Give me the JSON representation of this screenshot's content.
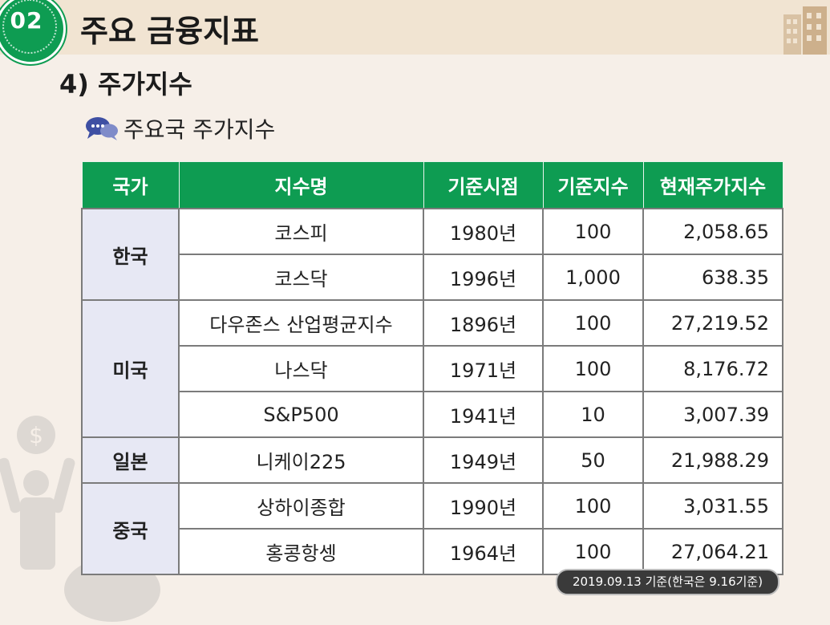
{
  "header": {
    "badge_number": "02",
    "title": "주요 금융지표"
  },
  "section": {
    "title": "4) 주가지수",
    "subtitle": "주요국 주가지수"
  },
  "colors": {
    "accent_green": "#0e9c52",
    "country_cell_bg": "#e7e8f4",
    "header_bar_bg": "#f1e4d2"
  },
  "icons": {
    "badge": "number-badge-icon",
    "buildings": "buildings-icon",
    "chat": "chat-bubbles-icon"
  },
  "table": {
    "headers": [
      "국가",
      "지수명",
      "기준시점",
      "기준지수",
      "현재주가지수"
    ],
    "groups": [
      {
        "country": "한국",
        "rows": [
          {
            "name": "코스피",
            "base_date": "1980년",
            "base_index": "100",
            "current": "2,058.65"
          },
          {
            "name": "코스닥",
            "base_date": "1996년",
            "base_index": "1,000",
            "current": "638.35"
          }
        ]
      },
      {
        "country": "미국",
        "rows": [
          {
            "name": "다우존스 산업평균지수",
            "base_date": "1896년",
            "base_index": "100",
            "current": "27,219.52"
          },
          {
            "name": "나스닥",
            "base_date": "1971년",
            "base_index": "100",
            "current": "8,176.72"
          },
          {
            "name": "S&P500",
            "base_date": "1941년",
            "base_index": "10",
            "current": "3,007.39"
          }
        ]
      },
      {
        "country": "일본",
        "rows": [
          {
            "name": "니케이225",
            "base_date": "1949년",
            "base_index": "50",
            "current": "21,988.29"
          }
        ]
      },
      {
        "country": "중국",
        "rows": [
          {
            "name": "상하이종합",
            "base_date": "1990년",
            "base_index": "100",
            "current": "3,031.55"
          },
          {
            "name": "홍콩항셍",
            "base_date": "1964년",
            "base_index": "100",
            "current": "27,064.21"
          }
        ]
      }
    ]
  },
  "footnote": "2019.09.13 기준(한국은 9.16기준)"
}
